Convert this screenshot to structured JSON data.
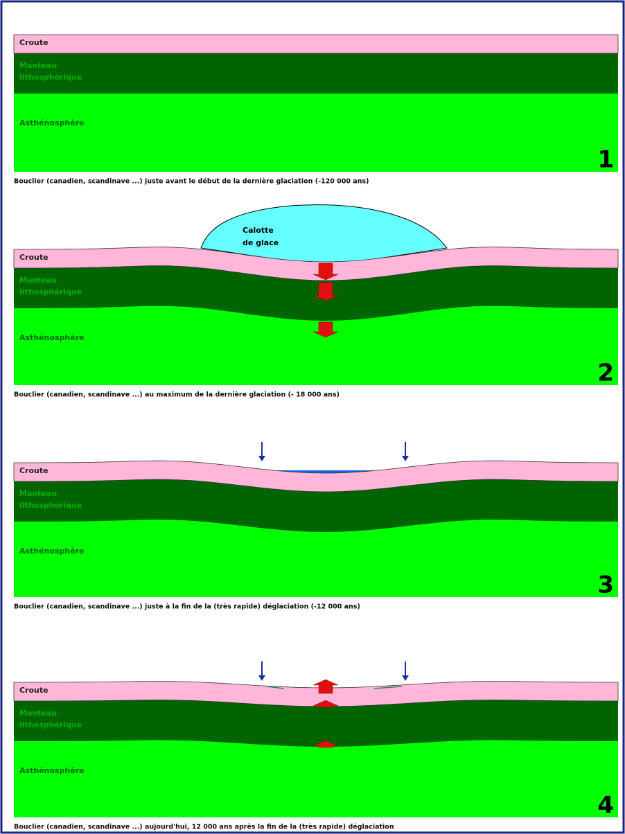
{
  "panels": [
    {
      "crust_label": "Croute",
      "mantle_label": [
        "Manteau",
        "lithosphérique"
      ],
      "asthenosphere_label": "Asthénosphère",
      "number": "1",
      "caption": "Bouclier (canadien, scandinave ...) juste avant le début de la dernière glaciation (-120 000 ans)"
    },
    {
      "ice_label": [
        "Calotte",
        "de glace"
      ],
      "crust_label": "Croute",
      "mantle_label": [
        "Manteau",
        "lithosphérique"
      ],
      "asthenosphere_label": "Asthénosphère",
      "number": "2",
      "caption": "Bouclier (canadien, scandinave ...) au maximum de la dernière glaciation (- 18 000 ans)"
    },
    {
      "crust_label": "Croute",
      "mantle_label": [
        "Manteau",
        "lithosphérique"
      ],
      "asthenosphere_label": "Asthénosphère",
      "number": "3",
      "caption": "Bouclier (canadien, scandinave ...) juste à la fin de la (très rapide) déglaciation (-12 000 ans)"
    },
    {
      "crust_label": "Croute",
      "mantle_label": [
        "Manteau",
        "lithosphérique"
      ],
      "asthenosphere_label": "Asthénosphère",
      "number": "4",
      "caption": "Bouclier (canadien, scandinave ...) aujourd'hui, 12 000 ans après la fin de la (très rapide) déglaciation"
    }
  ]
}
